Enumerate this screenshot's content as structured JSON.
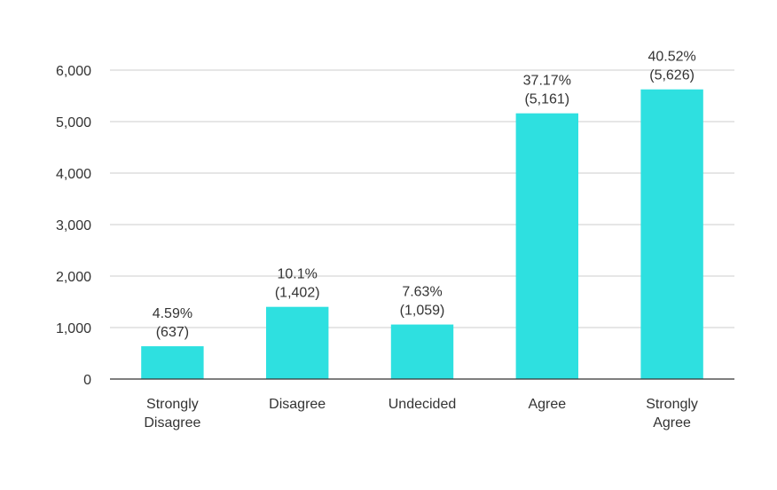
{
  "chart_data": {
    "type": "bar",
    "title": "",
    "xlabel": "",
    "ylabel": "",
    "categories": [
      [
        "Strongly",
        "Disagree"
      ],
      [
        "Disagree"
      ],
      [
        "Undecided"
      ],
      [
        "Agree"
      ],
      [
        "Strongly",
        "Agree"
      ]
    ],
    "values": [
      637,
      1402,
      1059,
      5161,
      5626
    ],
    "data_labels": [
      [
        "4.59%",
        "(637)"
      ],
      [
        "10.1%",
        "(1,402)"
      ],
      [
        "7.63%",
        "(1,059)"
      ],
      [
        "37.17%",
        "(5,161)"
      ],
      [
        "40.52%",
        "(5,626)"
      ]
    ],
    "ylim": [
      0,
      6000
    ],
    "yticks": [
      0,
      1000,
      2000,
      3000,
      4000,
      5000,
      6000
    ],
    "ytick_labels": [
      "0",
      "1,000",
      "2,000",
      "3,000",
      "4,000",
      "5,000",
      "6,000"
    ],
    "grid": true,
    "legend": "none",
    "bar_color": "#2ee0e0"
  }
}
